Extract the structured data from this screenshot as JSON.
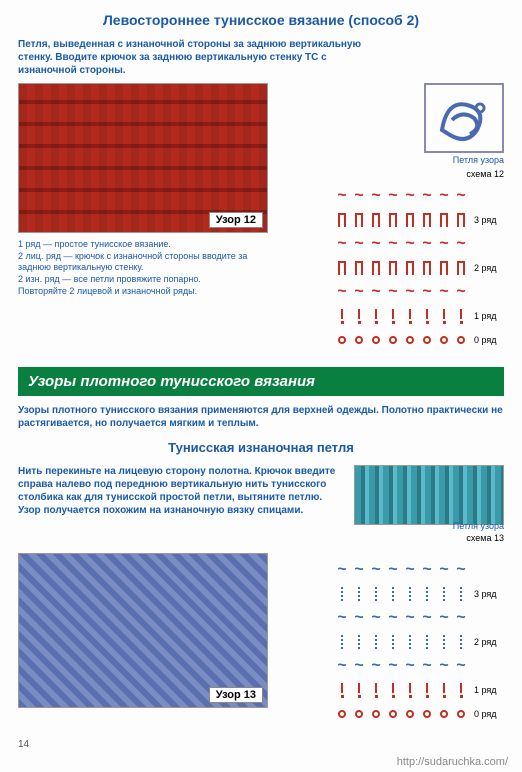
{
  "colors": {
    "title_blue": "#1a5aa8",
    "red_sym": "#c03020",
    "blue_sym": "#3a6ab0",
    "banner_bg": "#0a8040",
    "notes_text": "#1a5aa8"
  },
  "title1": "Левостороннее тунисское вязание (способ 2)",
  "intro1": "Петля, выведенная с изнаночной стороны за заднюю вертикальную стенку. Вводите крючок за заднюю вертикальную стенку ТС с изнаночной стороны.",
  "swatch1_label": "Узор 12",
  "loop_caption": "Петля узора",
  "schema1": "схема 12",
  "notes1": [
    "1 ряд — простое тунисское вязание.",
    "2 лиц. ряд — крючок с изнаночной стороны вводите за заднюю вертикальную стенку.",
    "2 изн. ряд — все петли провяжите попарно.",
    "Повторяйте 2 лицевой и изнаночной ряды."
  ],
  "chart1": {
    "rows": [
      {
        "symbols": [
          "~",
          "~",
          "~",
          "~",
          "~",
          "~",
          "~",
          "~"
        ],
        "color": "#c03020",
        "label": ""
      },
      {
        "symbols": [
          "I",
          "I",
          "I",
          "I",
          "I",
          "I",
          "I",
          "I"
        ],
        "color": "#c03020",
        "label": "3 ряд"
      },
      {
        "symbols": [
          "~",
          "~",
          "~",
          "~",
          "~",
          "~",
          "~",
          "~"
        ],
        "color": "#c03020",
        "label": ""
      },
      {
        "symbols": [
          "I",
          "I",
          "I",
          "I",
          "I",
          "I",
          "I",
          "I"
        ],
        "color": "#c03020",
        "label": "2 ряд"
      },
      {
        "symbols": [
          "~",
          "~",
          "~",
          "~",
          "~",
          "~",
          "~",
          "~"
        ],
        "color": "#c03020",
        "label": ""
      },
      {
        "symbols": [
          "!",
          "!",
          "!",
          "!",
          "!",
          "!",
          "!",
          "!"
        ],
        "color": "#c03020",
        "label": "1 ряд"
      },
      {
        "symbols": [
          "o",
          "o",
          "o",
          "o",
          "o",
          "o",
          "o",
          "o"
        ],
        "color": "#c03020",
        "label": "0 ряд"
      }
    ]
  },
  "banner": "Узоры плотного тунисского вязания",
  "intro2": "Узоры плотного тунисского вязания применяются для верхней одежды. Полотно практически не растягивается, но получается мягким и теплым.",
  "title2": "Тунисская изнаночная петля",
  "para2": "Нить перекиньте на лицевую сторону полотна. Крючок введите справа налево под переднюю вертикальную нить тунисского столбика как для тунисской простой петли, вытяните петлю. Узор получается похожим на изнаночную вязку спицами.",
  "loop_caption2": "Петля узора",
  "schema2": "схема 13",
  "swatch2_label": "Узор 13",
  "chart2": {
    "rows": [
      {
        "symbols": [
          "~",
          "~",
          "~",
          "~",
          "~",
          "~",
          "~",
          "~"
        ],
        "color": "#3a6ab0",
        "label": ""
      },
      {
        "symbols": [
          "|",
          "|",
          "|",
          "|",
          "|",
          "|",
          "|",
          "|"
        ],
        "color": "#3a6ab0",
        "label": "3 ряд",
        "dotted": true
      },
      {
        "symbols": [
          "~",
          "~",
          "~",
          "~",
          "~",
          "~",
          "~",
          "~"
        ],
        "color": "#3a6ab0",
        "label": ""
      },
      {
        "symbols": [
          "|",
          "|",
          "|",
          "|",
          "|",
          "|",
          "|",
          "|"
        ],
        "color": "#3a6ab0",
        "label": "2 ряд",
        "dotted": true
      },
      {
        "symbols": [
          "~",
          "~",
          "~",
          "~",
          "~",
          "~",
          "~",
          "~"
        ],
        "color": "#3a6ab0",
        "label": ""
      },
      {
        "symbols": [
          "!",
          "!",
          "!",
          "!",
          "!",
          "!",
          "!",
          "!"
        ],
        "color": "#c03020",
        "label": "1 ряд"
      },
      {
        "symbols": [
          "o",
          "o",
          "o",
          "o",
          "o",
          "o",
          "o",
          "o"
        ],
        "color": "#c03020",
        "label": "0 ряд"
      }
    ]
  },
  "pagenum": "14",
  "footer_url": "http://sudaruchka.com/"
}
